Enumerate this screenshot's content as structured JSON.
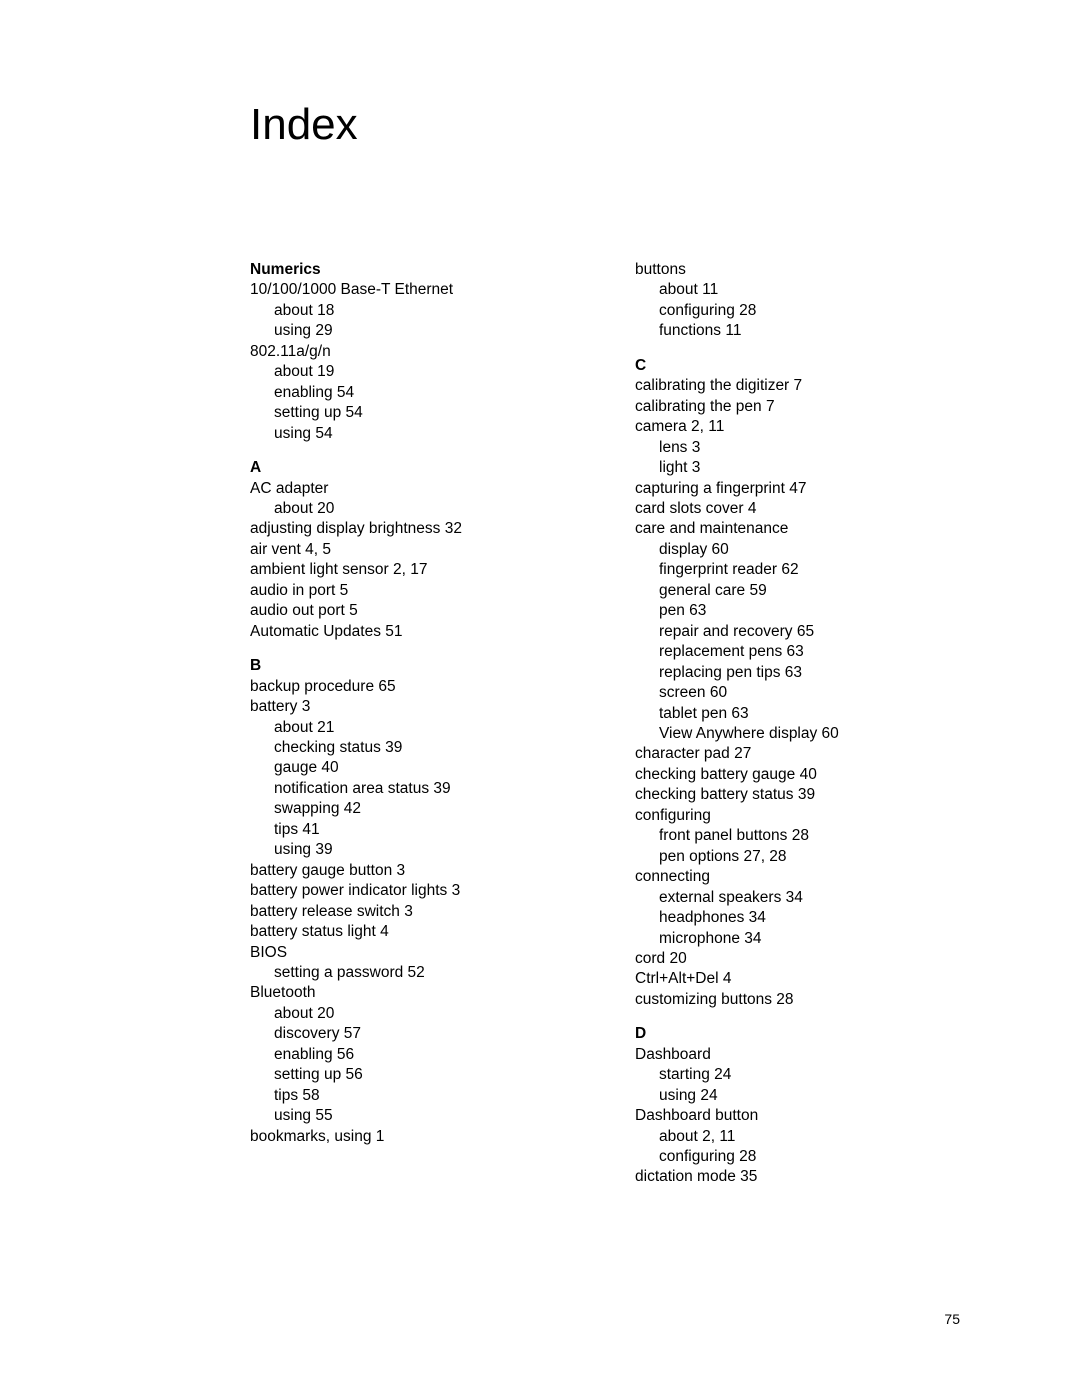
{
  "title": "Index",
  "page_number": "75",
  "left_column": {
    "sections": [
      {
        "header": "Numerics",
        "lines": [
          {
            "text": "10/100/1000 Base-T Ethernet",
            "indent": 0
          },
          {
            "text": "about 18",
            "indent": 1
          },
          {
            "text": "using 29",
            "indent": 1
          },
          {
            "text": "802.11a/g/n",
            "indent": 0
          },
          {
            "text": "about 19",
            "indent": 1
          },
          {
            "text": "enabling 54",
            "indent": 1
          },
          {
            "text": "setting up 54",
            "indent": 1
          },
          {
            "text": "using 54",
            "indent": 1
          }
        ]
      },
      {
        "header": "A",
        "lines": [
          {
            "text": "AC adapter",
            "indent": 0
          },
          {
            "text": "about 20",
            "indent": 1
          },
          {
            "text": "adjusting display brightness 32",
            "indent": 0
          },
          {
            "text": "air vent 4, 5",
            "indent": 0
          },
          {
            "text": "ambient light sensor 2, 17",
            "indent": 0
          },
          {
            "text": "audio in port 5",
            "indent": 0
          },
          {
            "text": "audio out port 5",
            "indent": 0
          },
          {
            "text": "Automatic Updates 51",
            "indent": 0
          }
        ]
      },
      {
        "header": "B",
        "lines": [
          {
            "text": "backup procedure 65",
            "indent": 0
          },
          {
            "text": "battery 3",
            "indent": 0
          },
          {
            "text": "about 21",
            "indent": 1
          },
          {
            "text": "checking status 39",
            "indent": 1
          },
          {
            "text": "gauge 40",
            "indent": 1
          },
          {
            "text": "notification area status 39",
            "indent": 1
          },
          {
            "text": "swapping 42",
            "indent": 1
          },
          {
            "text": "tips 41",
            "indent": 1
          },
          {
            "text": "using 39",
            "indent": 1
          },
          {
            "text": "battery gauge button 3",
            "indent": 0
          },
          {
            "text": "battery power indicator lights 3",
            "indent": 0
          },
          {
            "text": "battery release switch 3",
            "indent": 0
          },
          {
            "text": "battery status light 4",
            "indent": 0
          },
          {
            "text": "BIOS",
            "indent": 0
          },
          {
            "text": "setting a password 52",
            "indent": 1
          },
          {
            "text": "Bluetooth",
            "indent": 0
          },
          {
            "text": "about 20",
            "indent": 1
          },
          {
            "text": "discovery 57",
            "indent": 1
          },
          {
            "text": "enabling 56",
            "indent": 1
          },
          {
            "text": "setting up 56",
            "indent": 1
          },
          {
            "text": "tips 58",
            "indent": 1
          },
          {
            "text": "using 55",
            "indent": 1
          },
          {
            "text": "bookmarks, using 1",
            "indent": 0
          }
        ]
      }
    ]
  },
  "right_column": {
    "sections": [
      {
        "header": "",
        "lines": [
          {
            "text": "buttons",
            "indent": 0
          },
          {
            "text": "about 11",
            "indent": 1
          },
          {
            "text": "configuring 28",
            "indent": 1
          },
          {
            "text": "functions 11",
            "indent": 1
          }
        ]
      },
      {
        "header": "C",
        "lines": [
          {
            "text": "calibrating the digitizer 7",
            "indent": 0
          },
          {
            "text": "calibrating the pen 7",
            "indent": 0
          },
          {
            "text": "camera 2, 11",
            "indent": 0
          },
          {
            "text": "lens 3",
            "indent": 1
          },
          {
            "text": "light 3",
            "indent": 1
          },
          {
            "text": "capturing a fingerprint 47",
            "indent": 0
          },
          {
            "text": "card slots cover 4",
            "indent": 0
          },
          {
            "text": "care and maintenance",
            "indent": 0
          },
          {
            "text": "display 60",
            "indent": 1
          },
          {
            "text": "fingerprint reader 62",
            "indent": 1
          },
          {
            "text": "general care 59",
            "indent": 1
          },
          {
            "text": "pen 63",
            "indent": 1
          },
          {
            "text": "repair and recovery 65",
            "indent": 1
          },
          {
            "text": "replacement pens 63",
            "indent": 1
          },
          {
            "text": "replacing pen tips 63",
            "indent": 1
          },
          {
            "text": "screen 60",
            "indent": 1
          },
          {
            "text": "tablet pen 63",
            "indent": 1
          },
          {
            "text": "View Anywhere display 60",
            "indent": 1
          },
          {
            "text": "character pad 27",
            "indent": 0
          },
          {
            "text": "checking battery gauge 40",
            "indent": 0
          },
          {
            "text": "checking battery status 39",
            "indent": 0
          },
          {
            "text": "configuring",
            "indent": 0
          },
          {
            "text": "front panel buttons 28",
            "indent": 1
          },
          {
            "text": "pen options 27, 28",
            "indent": 1
          },
          {
            "text": "connecting",
            "indent": 0
          },
          {
            "text": "external speakers 34",
            "indent": 1
          },
          {
            "text": "headphones 34",
            "indent": 1
          },
          {
            "text": "microphone 34",
            "indent": 1
          },
          {
            "text": "cord 20",
            "indent": 0
          },
          {
            "text": "Ctrl+Alt+Del 4",
            "indent": 0
          },
          {
            "text": "customizing buttons 28",
            "indent": 0
          }
        ]
      },
      {
        "header": "D",
        "lines": [
          {
            "text": "Dashboard",
            "indent": 0
          },
          {
            "text": "starting 24",
            "indent": 1
          },
          {
            "text": "using 24",
            "indent": 1
          },
          {
            "text": "Dashboard button",
            "indent": 0
          },
          {
            "text": "about 2, 11",
            "indent": 1
          },
          {
            "text": "configuring 28",
            "indent": 1
          },
          {
            "text": "dictation mode 35",
            "indent": 0
          }
        ]
      }
    ]
  }
}
